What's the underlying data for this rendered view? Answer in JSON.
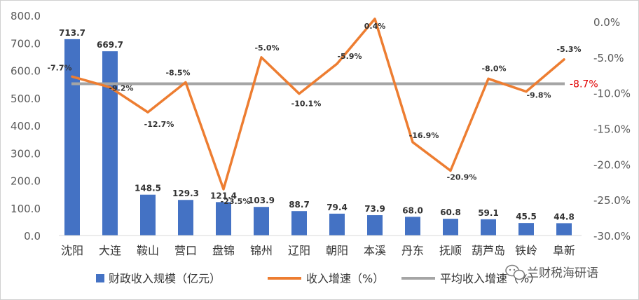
{
  "chart_data": {
    "type": "bar",
    "categories": [
      "沈阳",
      "大连",
      "鞍山",
      "营口",
      "盘锦",
      "锦州",
      "辽阳",
      "朝阳",
      "本溪",
      "丹东",
      "抚顺",
      "葫芦岛",
      "铁岭",
      "阜新"
    ],
    "series": [
      {
        "name": "财政收入规模（亿元）",
        "type": "bar",
        "axis": "left",
        "color": "#4472c4",
        "values": [
          713.7,
          669.7,
          148.5,
          129.3,
          121.4,
          103.9,
          88.7,
          79.4,
          73.9,
          68.0,
          60.8,
          59.1,
          45.5,
          44.8
        ],
        "labels": [
          "713.7",
          "669.7",
          "148.5",
          "129.3",
          "121.4",
          "103.9",
          "88.7",
          "79.4",
          "73.9",
          "68.0",
          "60.8",
          "59.1",
          "45.5",
          "44.8"
        ]
      },
      {
        "name": "收入增速（%）",
        "type": "line",
        "axis": "right",
        "color": "#ed7d31",
        "values": [
          -7.7,
          -9.2,
          -12.7,
          -8.5,
          -23.5,
          -5.0,
          -10.1,
          -5.9,
          0.4,
          -16.9,
          -20.9,
          -8.0,
          -9.8,
          -5.3
        ],
        "labels": [
          "-7.7%",
          "-9.2%",
          "-12.7%",
          "-8.5%",
          "-23.5%",
          "-5.0%",
          "-10.1%",
          "-5.9%",
          "0.4%",
          "-16.9%",
          "-20.9%",
          "-8.0%",
          "-9.8%",
          "-5.3%"
        ]
      },
      {
        "name": "平均收入增速（%）",
        "type": "line",
        "axis": "right",
        "color": "#a5a5a5",
        "value": -8.7,
        "label": "-8.7%"
      }
    ],
    "y_left": {
      "ylim": [
        0,
        800
      ],
      "ticks": [
        "0.0",
        "100.0",
        "200.0",
        "300.0",
        "400.0",
        "500.0",
        "600.0",
        "700.0",
        "800.0"
      ]
    },
    "y_right": {
      "ylim": [
        -30,
        0
      ],
      "ticks": [
        "0.0%",
        "-5.0%",
        "-10.0%",
        "-15.0%",
        "-20.0%",
        "-25.0%",
        "-30.0%"
      ]
    },
    "grid": false,
    "legend": "bottom"
  },
  "watermark": {
    "text": "兰财税海研语",
    "icon": "wechat-icon"
  }
}
